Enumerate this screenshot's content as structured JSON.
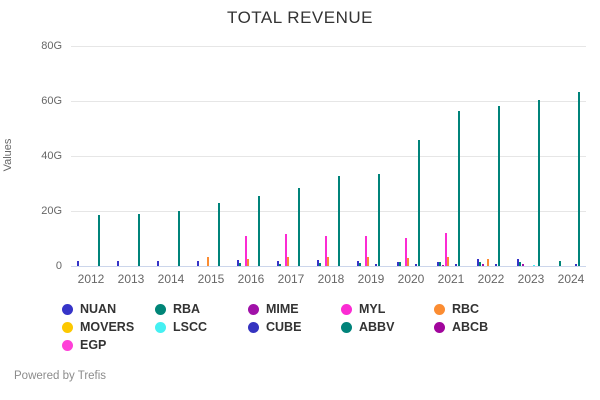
{
  "title": "TOTAL REVENUE",
  "ylabel": "Values",
  "footer": {
    "powered_by": "Powered by Trefis"
  },
  "chart_data": {
    "type": "bar",
    "title": "TOTAL REVENUE",
    "xlabel": "",
    "ylabel": "Values",
    "unit": "G (billions USD)",
    "grid": true,
    "legend_position": "bottom",
    "ylim": [
      0,
      80
    ],
    "y_ticks": [
      {
        "value": 0,
        "label": "0"
      },
      {
        "value": 20,
        "label": "20G"
      },
      {
        "value": 40,
        "label": "40G"
      },
      {
        "value": 60,
        "label": "60G"
      },
      {
        "value": 80,
        "label": "80G"
      }
    ],
    "categories": [
      "2012",
      "2013",
      "2014",
      "2015",
      "2016",
      "2017",
      "2018",
      "2019",
      "2020",
      "2021",
      "2022",
      "2023",
      "2024"
    ],
    "series": [
      {
        "name": "NUAN",
        "color": "#3634c8",
        "values": [
          1.7,
          1.9,
          1.9,
          1.9,
          2.0,
          1.9,
          2.1,
          1.8,
          1.5,
          1.4,
          2.5,
          2.5,
          0
        ]
      },
      {
        "name": "RBA",
        "color": "#008577",
        "values": [
          0,
          0,
          0,
          0,
          1.1,
          0.8,
          1.0,
          1.2,
          1.4,
          1.4,
          1.3,
          1.4,
          1.7
        ]
      },
      {
        "name": "MIME",
        "color": "#a011a8",
        "values": [
          0,
          0,
          0,
          0,
          0,
          0,
          0,
          0,
          0,
          0.5,
          0.8,
          0.6,
          0
        ]
      },
      {
        "name": "MYL",
        "color": "#fb2bd3",
        "values": [
          0,
          0,
          0,
          0,
          10.8,
          11.5,
          11.0,
          11.0,
          10.0,
          12.0,
          0,
          0,
          0
        ]
      },
      {
        "name": "RBC",
        "color": "#fb8c32",
        "values": [
          0,
          0,
          0,
          3.2,
          2.6,
          3.1,
          3.4,
          3.1,
          2.9,
          3.3,
          2.6,
          0,
          0
        ]
      },
      {
        "name": "MOVERS",
        "color": "#fcc800",
        "values": [
          0,
          0,
          0,
          0,
          0,
          0,
          0,
          0,
          0,
          0,
          0,
          0,
          0
        ]
      },
      {
        "name": "LSCC",
        "color": "#45f0f2",
        "values": [
          0,
          0,
          0,
          0,
          0,
          0,
          0,
          0,
          0,
          0,
          0,
          0.5,
          0
        ]
      },
      {
        "name": "CUBE",
        "color": "#3533c0",
        "values": [
          0,
          0,
          0,
          0,
          0,
          0,
          0,
          0.6,
          0.7,
          0.8,
          0.9,
          0,
          0.9
        ]
      },
      {
        "name": "ABBV",
        "color": "#00837a",
        "values": [
          18.4,
          18.8,
          20.0,
          22.9,
          25.6,
          28.2,
          32.8,
          33.3,
          45.8,
          56.2,
          58.1,
          60.5,
          63.3
        ]
      },
      {
        "name": "ABCB",
        "color": "#a1059c",
        "values": [
          0,
          0,
          0,
          0,
          0,
          0,
          0,
          0,
          0,
          0,
          0,
          0,
          0
        ]
      },
      {
        "name": "EGP",
        "color": "#ff40d8",
        "values": [
          0,
          0,
          0,
          0,
          0,
          0,
          0,
          0,
          0,
          0,
          0,
          0,
          0
        ]
      }
    ]
  }
}
